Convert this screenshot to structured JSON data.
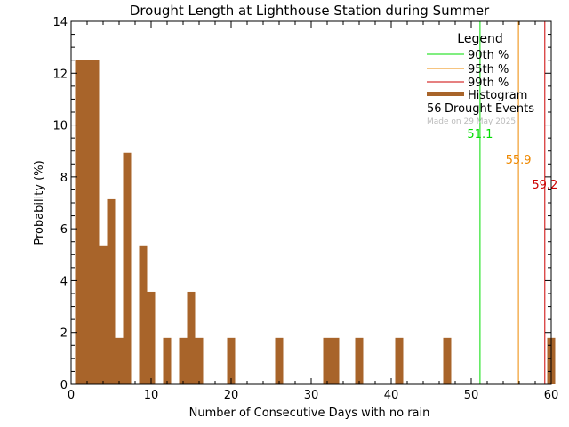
{
  "chart_data": {
    "type": "bar",
    "title": "Drought Length at Lighthouse Station during Summer",
    "xlabel": "Number of Consecutive Days with no rain",
    "ylabel": "Probability (%)",
    "xlim": [
      0,
      60
    ],
    "ylim": [
      0,
      14
    ],
    "xticks": [
      0,
      10,
      20,
      30,
      40,
      50,
      60
    ],
    "yticks": [
      0,
      2,
      4,
      6,
      8,
      10,
      12,
      14
    ],
    "bin_width": 1,
    "bins": [
      {
        "x": 1,
        "value": 12.5
      },
      {
        "x": 2,
        "value": 12.5
      },
      {
        "x": 3,
        "value": 12.5
      },
      {
        "x": 4,
        "value": 5.36
      },
      {
        "x": 5,
        "value": 7.14
      },
      {
        "x": 6,
        "value": 1.79
      },
      {
        "x": 7,
        "value": 8.93
      },
      {
        "x": 9,
        "value": 5.36
      },
      {
        "x": 10,
        "value": 3.57
      },
      {
        "x": 12,
        "value": 1.79
      },
      {
        "x": 14,
        "value": 1.79
      },
      {
        "x": 15,
        "value": 3.57
      },
      {
        "x": 16,
        "value": 1.79
      },
      {
        "x": 20,
        "value": 1.79
      },
      {
        "x": 26,
        "value": 1.79
      },
      {
        "x": 32,
        "value": 1.79
      },
      {
        "x": 33,
        "value": 1.79
      },
      {
        "x": 36,
        "value": 1.79
      },
      {
        "x": 41,
        "value": 1.79
      },
      {
        "x": 47,
        "value": 1.79
      },
      {
        "x": 60,
        "value": 1.79
      }
    ],
    "percentile_lines": [
      {
        "name": "90th %",
        "value": 51.1,
        "label": "51.1",
        "color": "#00dd00"
      },
      {
        "name": "95th %",
        "value": 55.9,
        "label": "55.9",
        "color": "#ee8800"
      },
      {
        "name": "99th %",
        "value": 59.2,
        "label": "59.2",
        "color": "#cc0000"
      }
    ],
    "legend": {
      "title": "Legend",
      "position": "top-right",
      "histogram_label": "Histogram",
      "count": "56",
      "count_label": "Drought Events",
      "made_on": "Made on 29 May 2025"
    },
    "colors": {
      "histogram": "#a8642a",
      "made_on": "#bbbbbb"
    }
  }
}
